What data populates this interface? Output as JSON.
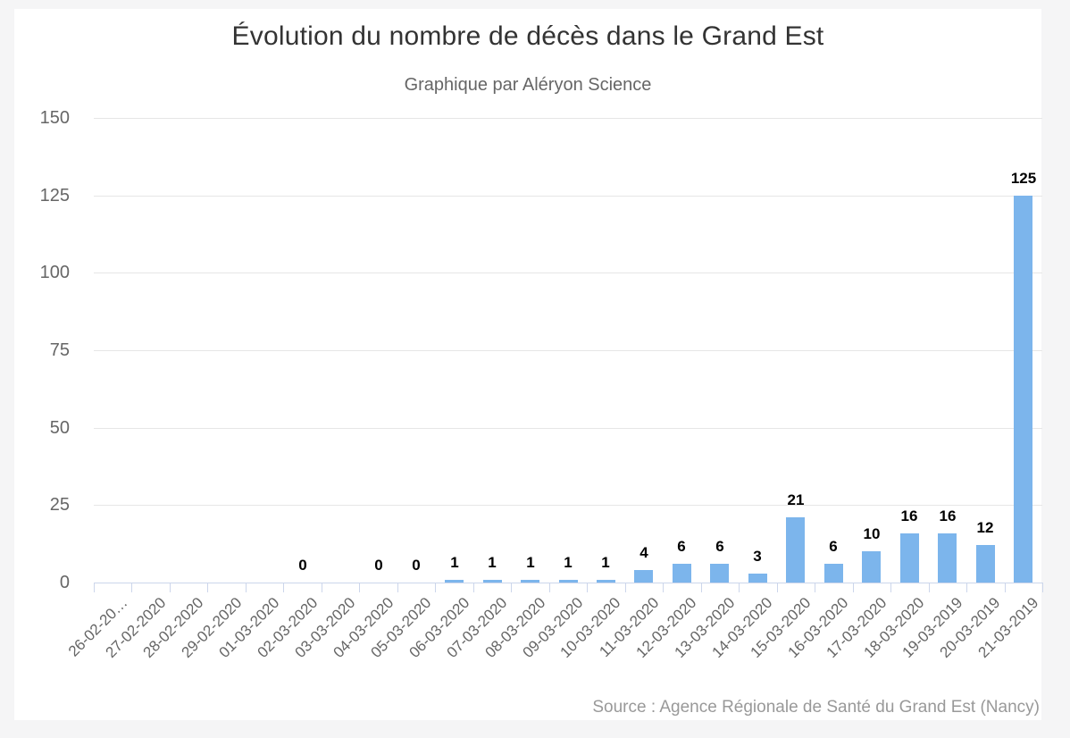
{
  "chart_data": {
    "type": "bar",
    "title": "Évolution du nombre de décès dans le Grand Est",
    "subtitle": "Graphique par Aléryon Science",
    "source": "Source : Agence Régionale de Santé du Grand Est (Nancy)",
    "categories": [
      "26-02-20…",
      "27-02-2020",
      "28-02-2020",
      "29-02-2020",
      "01-03-2020",
      "02-03-2020",
      "03-03-2020",
      "04-03-2020",
      "05-03-2020",
      "06-03-2020",
      "07-03-2020",
      "08-03-2020",
      "09-03-2020",
      "10-03-2020",
      "11-03-2020",
      "12-03-2020",
      "13-03-2020",
      "14-03-2020",
      "15-03-2020",
      "16-03-2020",
      "17-03-2020",
      "18-03-2020",
      "19-03-2019",
      "20-03-2019",
      "21-03-2019"
    ],
    "values": [
      null,
      null,
      null,
      null,
      null,
      0,
      null,
      0,
      0,
      1,
      1,
      1,
      1,
      1,
      4,
      6,
      6,
      3,
      21,
      6,
      10,
      16,
      16,
      12,
      125
    ],
    "ylim": [
      0,
      150
    ],
    "yticks": [
      0,
      25,
      50,
      75,
      100,
      125,
      150
    ],
    "grid": true,
    "legend_position": "none",
    "bar_color": "#7cb5ec",
    "colors": {
      "title": "#333333",
      "subtitle": "#666666",
      "axis_labels": "#666666",
      "data_labels": "#000000",
      "axis_line": "#ccd6eb",
      "gridline": "#e6e6e6",
      "source": "#999999",
      "chart_background": "#ffffff",
      "page_background": "#f5f5f6"
    }
  }
}
